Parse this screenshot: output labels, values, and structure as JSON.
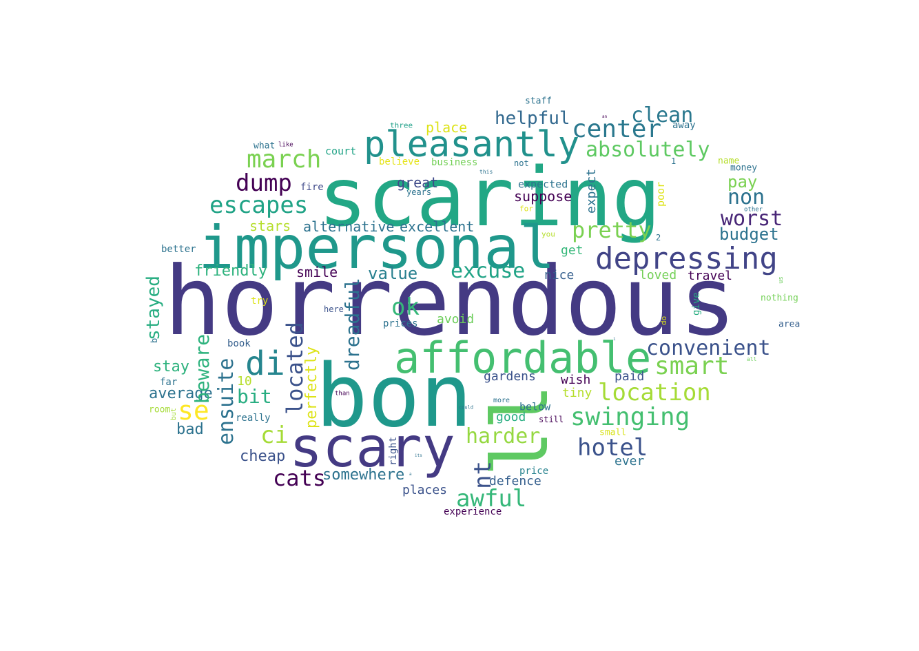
{
  "words": [
    {
      "text": "scaring",
      "color": "#22a785"
    },
    {
      "text": "horrendous",
      "color": "#443a83"
    },
    {
      "text": "impersonal",
      "color": "#1f988b"
    },
    {
      "text": "bon",
      "color": "#1f988b"
    },
    {
      "text": "ll",
      "color": "#5ec962"
    },
    {
      "text": "scary",
      "color": "#443a83"
    },
    {
      "text": "affordable",
      "color": "#44bf70"
    },
    {
      "text": "pleasantly",
      "color": "#21918c"
    },
    {
      "text": "depressing",
      "color": "#414487"
    },
    {
      "text": "center",
      "color": "#2a788e"
    },
    {
      "text": "clean",
      "color": "#2a788e"
    },
    {
      "text": "absolutely",
      "color": "#5ec962"
    },
    {
      "text": "march",
      "color": "#7ad151"
    },
    {
      "text": "dump",
      "color": "#440154"
    },
    {
      "text": "escapes",
      "color": "#20a386"
    },
    {
      "text": "non",
      "color": "#2c728e"
    },
    {
      "text": "pay",
      "color": "#7ad151"
    },
    {
      "text": "worst",
      "color": "#482677"
    },
    {
      "text": "budget",
      "color": "#2c728e"
    },
    {
      "text": "pretty",
      "color": "#7ad151"
    },
    {
      "text": "excuse",
      "color": "#20a386"
    },
    {
      "text": "convenient",
      "color": "#3b528b"
    },
    {
      "text": "smart",
      "color": "#7ad151"
    },
    {
      "text": "location",
      "color": "#a5db36"
    },
    {
      "text": "swinging",
      "color": "#44bf70"
    },
    {
      "text": "hotel",
      "color": "#3b528b"
    },
    {
      "text": "harder",
      "color": "#95d840"
    },
    {
      "text": "awful",
      "color": "#35b779"
    },
    {
      "text": "cats",
      "color": "#440154"
    },
    {
      "text": "somewhere",
      "color": "#2c728e"
    },
    {
      "text": "di",
      "color": "#25858e"
    },
    {
      "text": "se",
      "color": "#fde725"
    },
    {
      "text": "ci",
      "color": "#a5db36"
    },
    {
      "text": "ok",
      "color": "#35b779"
    },
    {
      "text": "bit",
      "color": "#27ad81"
    },
    {
      "text": "helpful",
      "color": "#31688e"
    },
    {
      "text": "alternative",
      "color": "#2c728e"
    },
    {
      "text": "excellent",
      "color": "#2c728e"
    },
    {
      "text": "stars",
      "color": "#b5de2b"
    },
    {
      "text": "value",
      "color": "#277f8e"
    },
    {
      "text": "friendly",
      "color": "#2db27d"
    },
    {
      "text": "smile",
      "color": "#440154"
    },
    {
      "text": "great",
      "color": "#3e4989"
    },
    {
      "text": "suppose",
      "color": "#440154"
    },
    {
      "text": "expected",
      "color": "#2c728e"
    },
    {
      "text": "place",
      "color": "#dde318"
    },
    {
      "text": "business",
      "color": "#73d056"
    },
    {
      "text": "believe",
      "color": "#e5e419"
    },
    {
      "text": "court",
      "color": "#20a386"
    },
    {
      "text": "fire",
      "color": "#3e4989"
    },
    {
      "text": "years",
      "color": "#2c728e"
    },
    {
      "text": "stay",
      "color": "#2db27d"
    },
    {
      "text": "average",
      "color": "#2c728e"
    },
    {
      "text": "bad",
      "color": "#2c728e"
    },
    {
      "text": "cheap",
      "color": "#3b528b"
    },
    {
      "text": "avoid",
      "color": "#6ccd5a"
    },
    {
      "text": "prices",
      "color": "#2c728e"
    },
    {
      "text": "nice",
      "color": "#355f8d"
    },
    {
      "text": "loved",
      "color": "#73d056"
    },
    {
      "text": "travel",
      "color": "#440154"
    },
    {
      "text": "get",
      "color": "#35b779"
    },
    {
      "text": "gardens",
      "color": "#3b528b"
    },
    {
      "text": "wish",
      "color": "#440154"
    },
    {
      "text": "paid",
      "color": "#3b528b"
    },
    {
      "text": "tiny",
      "color": "#b5de2b"
    },
    {
      "text": "good",
      "color": "#27ad81"
    },
    {
      "text": "below",
      "color": "#2c728e"
    },
    {
      "text": "still",
      "color": "#440154"
    },
    {
      "text": "defence",
      "color": "#355f8d"
    },
    {
      "text": "price",
      "color": "#26828e"
    },
    {
      "text": "places",
      "color": "#3b528b"
    },
    {
      "text": "experience",
      "color": "#440154"
    },
    {
      "text": "ever",
      "color": "#2c728e"
    },
    {
      "text": "small",
      "color": "#d8e219"
    },
    {
      "text": "really",
      "color": "#2c728e"
    },
    {
      "text": "10",
      "color": "#b5de2b"
    },
    {
      "text": "far",
      "color": "#2c728e"
    },
    {
      "text": "room",
      "color": "#a5db36"
    },
    {
      "text": "book",
      "color": "#355f8d"
    },
    {
      "text": "better",
      "color": "#2c728e"
    },
    {
      "text": "try",
      "color": "#dde318"
    },
    {
      "text": "here",
      "color": "#3b528b"
    },
    {
      "text": "staff",
      "color": "#2c728e"
    },
    {
      "text": "three",
      "color": "#1fa088"
    },
    {
      "text": "like",
      "color": "#440154"
    },
    {
      "text": "what",
      "color": "#2c728e"
    },
    {
      "text": "not",
      "color": "#2c728e"
    },
    {
      "text": "this",
      "color": "#2c728e"
    },
    {
      "text": "1",
      "color": "#2c728e"
    },
    {
      "text": "name",
      "color": "#b5de2b"
    },
    {
      "text": "money",
      "color": "#2c728e"
    },
    {
      "text": "away",
      "color": "#2c728e"
    },
    {
      "text": "an",
      "color": "#440154"
    },
    {
      "text": "other",
      "color": "#2c728e"
    },
    {
      "text": "for",
      "color": "#dde318"
    },
    {
      "text": "you",
      "color": "#b5de2b"
    },
    {
      "text": "2",
      "color": "#2c728e"
    },
    {
      "text": "nothing",
      "color": "#73d056"
    },
    {
      "text": "area",
      "color": "#355f8d"
    },
    {
      "text": "all",
      "color": "#6ccd5a"
    },
    {
      "text": "more",
      "color": "#2c728e"
    },
    {
      "text": "could",
      "color": "#2c728e"
    },
    {
      "text": "than",
      "color": "#440154"
    },
    {
      "text": "its",
      "color": "#2c728e"
    },
    {
      "text": "a",
      "color": "#2c728e"
    },
    {
      "text": "i",
      "color": "#2c728e"
    },
    {
      "text": "stayed",
      "color": "#27ad81"
    },
    {
      "text": "beware",
      "color": "#2db27d"
    },
    {
      "text": "ensuite",
      "color": "#2c728e"
    },
    {
      "text": "located",
      "color": "#3b528b"
    },
    {
      "text": "perfectly",
      "color": "#dde318"
    },
    {
      "text": "dreadful",
      "color": "#2c728e"
    },
    {
      "text": "nt",
      "color": "#3b528b"
    },
    {
      "text": "expect",
      "color": "#2c728e"
    },
    {
      "text": "poor",
      "color": "#dde318"
    },
    {
      "text": "give",
      "color": "#27ad81"
    },
    {
      "text": "do",
      "color": "#dde318"
    },
    {
      "text": "us",
      "color": "#6ccd5a"
    },
    {
      "text": "b",
      "color": "#2c728e"
    },
    {
      "text": "but",
      "color": "#a5db36"
    },
    {
      "text": "right",
      "color": "#3b528b"
    }
  ]
}
